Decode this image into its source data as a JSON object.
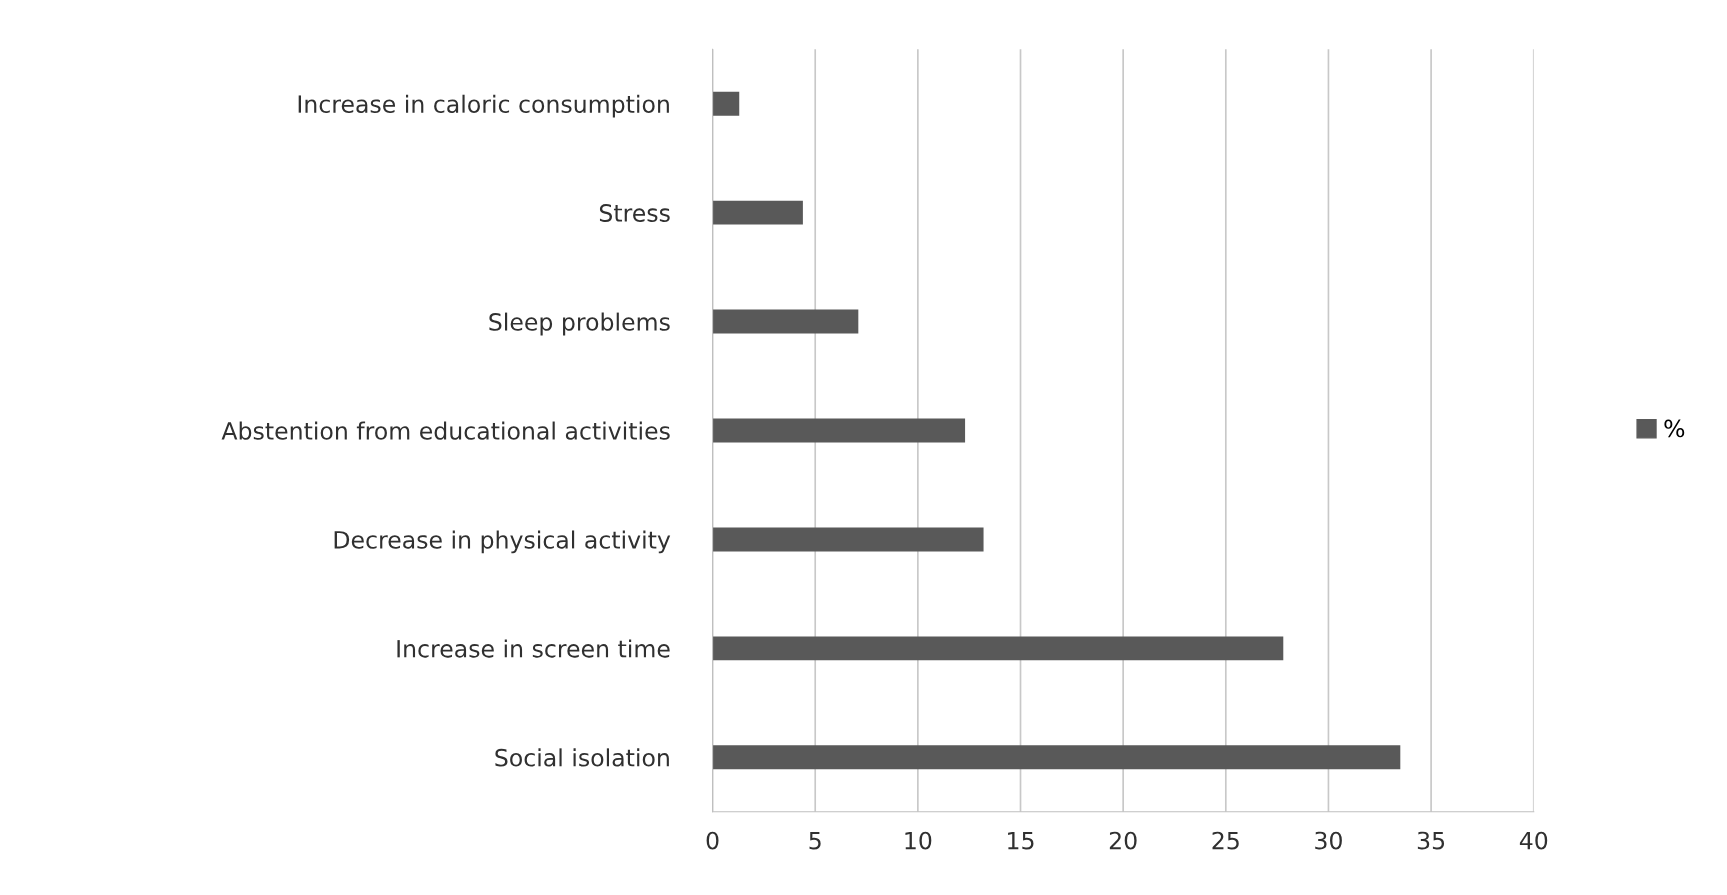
{
  "chart_data": {
    "type": "bar",
    "orientation": "horizontal",
    "categories": [
      "Increase in caloric consumption",
      "Stress",
      "Sleep problems",
      "Abstention from educational activities",
      "Decrease in physical activity",
      "Increase in screen time",
      "Social isolation"
    ],
    "series": [
      {
        "name": "%",
        "color": "#595959",
        "values": [
          1.3,
          4.4,
          7.1,
          12.3,
          13.2,
          27.8,
          33.5
        ]
      }
    ],
    "xlim": [
      0,
      40
    ],
    "xticks": [
      0,
      5,
      10,
      15,
      20,
      25,
      30,
      35,
      40
    ],
    "grid": "x",
    "legend": "right"
  }
}
